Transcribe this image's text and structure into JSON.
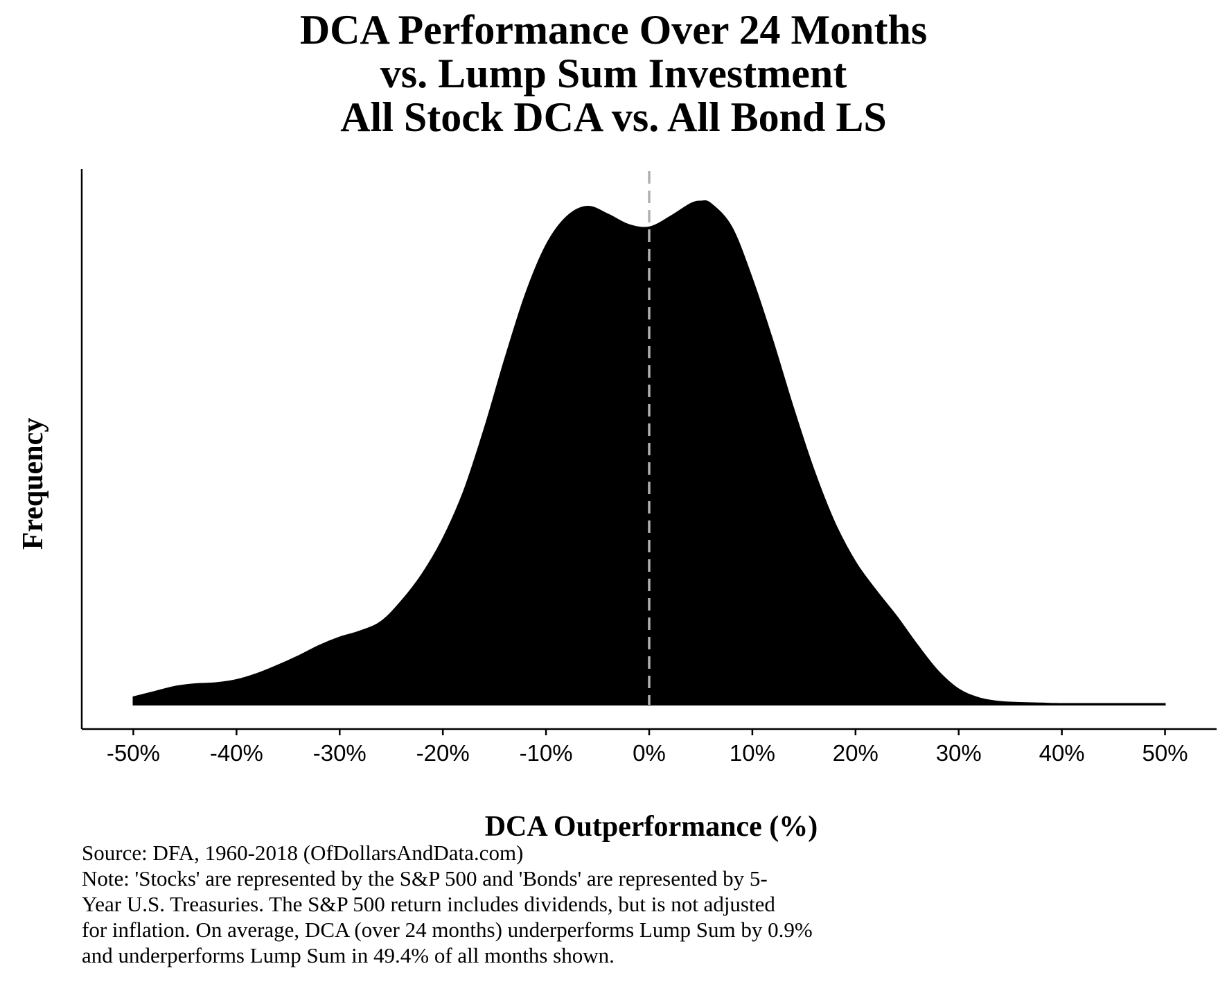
{
  "chart_data": {
    "type": "area",
    "title": [
      "DCA Performance Over 24 Months",
      "vs. Lump Sum Investment",
      "All Stock DCA vs. All Bond LS"
    ],
    "xlabel": "DCA Outperformance (%)",
    "ylabel": "Frequency",
    "xlim": [
      -55,
      55
    ],
    "ylim": [
      0,
      1.0
    ],
    "x_ticks": [
      -50,
      -40,
      -30,
      -20,
      -10,
      0,
      10,
      20,
      30,
      40,
      50
    ],
    "x_tick_labels": [
      "-50%",
      "-40%",
      "-30%",
      "-20%",
      "-10%",
      "0%",
      "10%",
      "20%",
      "30%",
      "40%",
      "50%"
    ],
    "y_ticks_shown": false,
    "grid": false,
    "legend": "none",
    "fill_color": "#000000",
    "reference_line": {
      "x": 0,
      "style": "dashed",
      "color": "#b0b0b0"
    },
    "series": [
      {
        "x": [
          -50,
          -48,
          -46,
          -44,
          -42,
          -40,
          -38,
          -36,
          -34,
          -32,
          -30,
          -28,
          -26,
          -24,
          -22,
          -20,
          -18,
          -16,
          -14,
          -12,
          -10,
          -8,
          -6,
          -4,
          -2,
          0,
          2,
          4,
          5,
          6,
          8,
          10,
          12,
          14,
          16,
          18,
          20,
          22,
          24,
          26,
          28,
          30,
          32,
          34,
          36,
          38,
          40,
          44,
          48,
          50
        ],
        "y": [
          0.015,
          0.025,
          0.035,
          0.04,
          0.042,
          0.048,
          0.06,
          0.076,
          0.094,
          0.114,
          0.13,
          0.142,
          0.16,
          0.2,
          0.252,
          0.32,
          0.41,
          0.53,
          0.665,
          0.79,
          0.885,
          0.94,
          0.96,
          0.945,
          0.925,
          0.92,
          0.94,
          0.965,
          0.97,
          0.965,
          0.92,
          0.82,
          0.7,
          0.57,
          0.45,
          0.35,
          0.275,
          0.22,
          0.17,
          0.115,
          0.065,
          0.03,
          0.013,
          0.006,
          0.004,
          0.003,
          0.002,
          0.002,
          0.002,
          0.002
        ]
      }
    ]
  },
  "footnote": {
    "lines": [
      "Source:  DFA, 1960-2018 (OfDollarsAndData.com)",
      "Note: 'Stocks' are represented by the S&P 500 and 'Bonds' are represented by 5-",
      "Year U.S. Treasuries. The S&P 500 return includes dividends, but is not adjusted",
      "for inflation. On average, DCA (over 24 months) underperforms Lump Sum by 0.9%",
      "and underperforms Lump Sum in 49.4% of all months shown."
    ]
  }
}
